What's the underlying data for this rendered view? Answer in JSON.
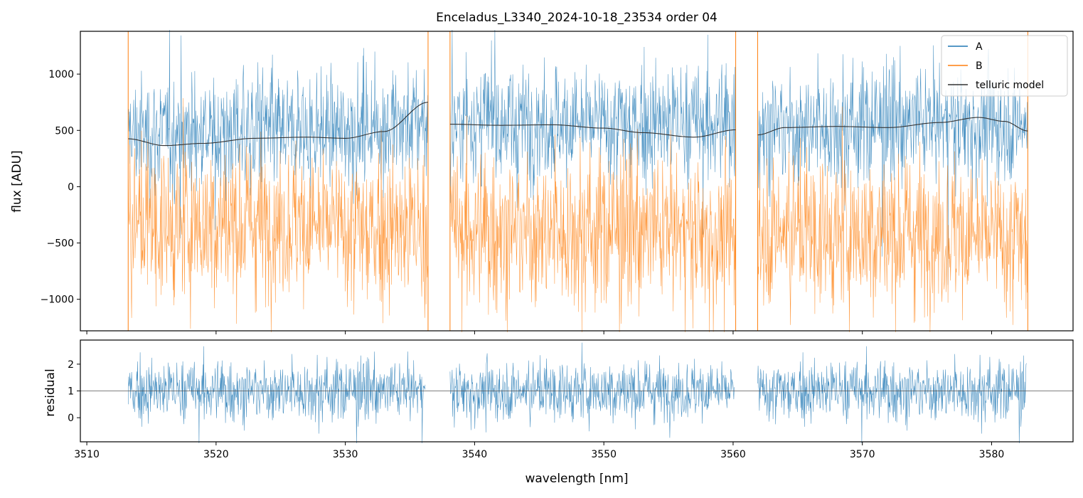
{
  "chart_data": [
    {
      "type": "line",
      "panel": "top",
      "title": "Enceladus_L3340_2024-10-18_23534  order 04",
      "xlabel": "",
      "ylabel": "flux [ADU]",
      "xlim": [
        3509.5,
        3586.3
      ],
      "ylim": [
        -1280,
        1380
      ],
      "yticks": [
        1000,
        500,
        0,
        -500,
        -1000
      ],
      "ytick_labels": [
        "1000",
        "500",
        "0",
        "−500",
        "−1000"
      ],
      "legend_position": "top-right",
      "segments": [
        [
          3513.2,
          3536.4
        ],
        [
          3538.1,
          3560.2
        ],
        [
          3561.9,
          3582.8
        ]
      ],
      "series": [
        {
          "name": "A",
          "color": "#1f77b4",
          "description": "noisy spectrum around telluric model",
          "noise_std": 260,
          "knots": [
            [
              3513.2,
              470
            ],
            [
              3520,
              480
            ],
            [
              3528,
              500
            ],
            [
              3536.4,
              560
            ],
            [
              3538.1,
              590
            ],
            [
              3550,
              560
            ],
            [
              3560.2,
              560
            ],
            [
              3561.9,
              520
            ],
            [
              3575,
              560
            ],
            [
              3582.8,
              560
            ]
          ]
        },
        {
          "name": "B",
          "color": "#ff7f0e",
          "description": "noisy spectrum, negative offset",
          "noise_std": 340,
          "knots": [
            [
              3513.2,
              -330
            ],
            [
              3525,
              -330
            ],
            [
              3536.4,
              -400
            ],
            [
              3538.1,
              -400
            ],
            [
              3550,
              -390
            ],
            [
              3560.2,
              -420
            ],
            [
              3561.9,
              -390
            ],
            [
              3575,
              -420
            ],
            [
              3582.8,
              -460
            ]
          ]
        },
        {
          "name": "telluric model",
          "color": "#333333",
          "knots": [
            [
              [
                3513.2,
                425
              ],
              [
                3516,
                365
              ],
              [
                3519,
                385
              ],
              [
                3523,
                430
              ],
              [
                3527,
                440
              ],
              [
                3530,
                430
              ],
              [
                3533,
                490
              ],
              [
                3536.4,
                750
              ]
            ],
            [
              [
                3538.1,
                555
              ],
              [
                3542,
                545
              ],
              [
                3546,
                550
              ],
              [
                3550,
                520
              ],
              [
                3553,
                480
              ],
              [
                3557,
                440
              ],
              [
                3560.2,
                505
              ]
            ],
            [
              [
                3561.9,
                460
              ],
              [
                3564,
                525
              ],
              [
                3568,
                535
              ],
              [
                3572,
                525
              ],
              [
                3576,
                570
              ],
              [
                3579,
                615
              ],
              [
                3581,
                580
              ],
              [
                3582.8,
                495
              ]
            ]
          ]
        }
      ]
    },
    {
      "type": "line",
      "panel": "bottom",
      "title": "",
      "xlabel": "wavelength [nm]",
      "ylabel": "residual",
      "xlim": [
        3509.5,
        3586.3
      ],
      "ylim": [
        -0.9,
        2.9
      ],
      "xticks": [
        3510,
        3520,
        3530,
        3540,
        3550,
        3560,
        3570,
        3580
      ],
      "xtick_labels": [
        "3510",
        "3520",
        "3530",
        "3540",
        "3550",
        "3560",
        "3570",
        "3580"
      ],
      "yticks": [
        2,
        1,
        0
      ],
      "ytick_labels": [
        "2",
        "1",
        "0"
      ],
      "reference_line": 1,
      "series": [
        {
          "name": "residual",
          "color": "#1f77b4",
          "mean": 1.0,
          "noise_std": 0.55,
          "segments": [
            [
              3513.2,
              3536.2
            ],
            [
              3538.1,
              3560.1
            ],
            [
              3561.9,
              3582.7
            ]
          ]
        }
      ]
    }
  ]
}
